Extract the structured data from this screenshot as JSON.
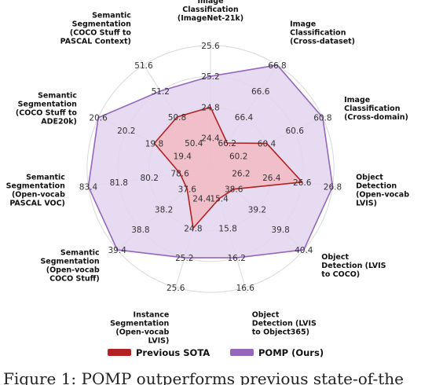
{
  "chart_data": {
    "type": "radar",
    "axes": [
      {
        "label": [
          "Image",
          "Classification",
          "(ImageNet-21k)"
        ],
        "ticks": [
          "24.4",
          "24.8",
          "25.2",
          "25.6"
        ]
      },
      {
        "label": [
          "Image",
          "Classification",
          "(Cross-dataset)"
        ],
        "ticks": [
          "66.2",
          "66.4",
          "66.6",
          "66.8"
        ]
      },
      {
        "label": [
          "Image",
          "Classification",
          "(Cross-domain)"
        ],
        "ticks": [
          "60.2",
          "60.4",
          "60.6",
          "60.8"
        ]
      },
      {
        "label": [
          "Object",
          "Detection",
          "(Open-vocab",
          "LVIS)"
        ],
        "ticks": [
          "26.2",
          "26.4",
          "26.6",
          "26.8"
        ]
      },
      {
        "label": [
          "Object",
          "Detection (LVIS",
          "to COCO)"
        ],
        "ticks": [
          "38.6",
          "39.2",
          "39.8",
          "40.4"
        ]
      },
      {
        "label": [
          "Object",
          "Detection (LVIS",
          "to Object365)"
        ],
        "ticks": [
          "15.4",
          "15.8",
          "16.2",
          "16.6"
        ]
      },
      {
        "label": [
          "Instance",
          "Segmentation",
          "(Open-vocab",
          "LVIS)"
        ],
        "ticks": [
          "24.4",
          "24.8",
          "25.2",
          "25.6"
        ]
      },
      {
        "label": [
          "Semantic",
          "Segmentation",
          "(Open-vocab",
          "COCO Stuff)"
        ],
        "ticks": [
          "37.6",
          "38.2",
          "38.8",
          "39.4"
        ]
      },
      {
        "label": [
          "Semantic",
          "Segmentation",
          "(Open-vocab",
          "PASCAL VOC)"
        ],
        "ticks": [
          "78.6",
          "80.2",
          "81.8",
          "83.4"
        ]
      },
      {
        "label": [
          "Semantic",
          "Segmentation",
          "(COCO Stuff to",
          "ADE20k)"
        ],
        "ticks": [
          "19.4",
          "19.8",
          "20.2",
          "20.6"
        ]
      },
      {
        "label": [
          "Semantic",
          "Segmentation",
          "(COCO Stuff to",
          "PASCAL Context)"
        ],
        "ticks": [
          "50.4",
          "50.8",
          "51.2",
          "51.6"
        ]
      }
    ],
    "rmax_level": 4.2,
    "series": [
      {
        "name": "Previous SOTA",
        "color": "#b22222",
        "fill": "#f2b8c0",
        "values": [
          24.8,
          66.2,
          60.4,
          26.6,
          38.6,
          15.4,
          24.8,
          37.6,
          78.6,
          19.8,
          50.8
        ]
      },
      {
        "name": "POMP (Ours)",
        "color": "#9467bd",
        "fill": "#e3d5ee",
        "values": [
          25.2,
          66.8,
          60.8,
          26.8,
          40.4,
          16.2,
          25.2,
          39.4,
          83.4,
          20.6,
          51.2
        ]
      }
    ],
    "legend_position": "bottom",
    "grid": true
  },
  "caption": "Figure 1: POMP outperforms previous state-of-the"
}
